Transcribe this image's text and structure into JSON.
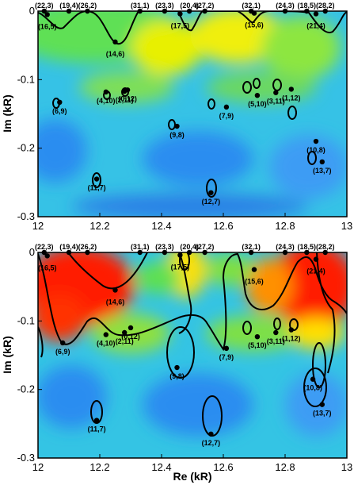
{
  "chart_data": [
    {
      "type": "heatmap",
      "title": "",
      "xlabel": "",
      "ylabel": "Im (kR)",
      "xlim": [
        12,
        13
      ],
      "ylim": [
        -0.3,
        0
      ],
      "xticks": [
        "12",
        "12.2",
        "12.4",
        "12.6",
        "12.8",
        "13"
      ],
      "yticks": [
        "0",
        "-0.1",
        "-0.2",
        "-0.3"
      ],
      "colorscale": [
        "#0b3bd6",
        "#2fa6f5",
        "#33d6c8",
        "#5de04a",
        "#ffef00",
        "#ff8c00",
        "#ff1a00"
      ],
      "top_labels": [
        {
          "label": "(22,3)",
          "x": 12.02
        },
        {
          "label": "(19,4)",
          "x": 12.1
        },
        {
          "label": "(26,2)",
          "x": 12.16
        },
        {
          "label": "(31,1)",
          "x": 12.33
        },
        {
          "label": "(23,3)",
          "x": 12.41
        },
        {
          "label": "(20,4)",
          "x": 12.49
        },
        {
          "label": "(27,2)",
          "x": 12.54
        },
        {
          "label": "(32,1)",
          "x": 12.69
        },
        {
          "label": "(24,3)",
          "x": 12.8
        },
        {
          "label": "(18,5)",
          "x": 12.87
        },
        {
          "label": "(28,2)",
          "x": 12.93
        }
      ],
      "poles": [
        {
          "label": "(16,5)",
          "re": 12.03,
          "im": -0.005
        },
        {
          "label": "(14,6)",
          "re": 12.25,
          "im": -0.045
        },
        {
          "label": "(17,5)",
          "re": 12.46,
          "im": -0.004
        },
        {
          "label": "(15,6)",
          "re": 12.7,
          "im": -0.003
        },
        {
          "label": "(21,4)",
          "re": 12.9,
          "im": -0.004
        },
        {
          "label": "(0,12)",
          "re": 12.29,
          "im": -0.115
        },
        {
          "label": "(4,10)",
          "re": 12.22,
          "im": -0.118
        },
        {
          "label": "(2,11)",
          "re": 12.28,
          "im": -0.117
        },
        {
          "label": "(6,9)",
          "re": 12.07,
          "im": -0.133
        },
        {
          "label": "(7,9)",
          "re": 12.61,
          "im": -0.14
        },
        {
          "label": "(5,10)",
          "re": 12.71,
          "im": -0.123
        },
        {
          "label": "(3,11)",
          "re": 12.77,
          "im": -0.119
        },
        {
          "label": "(1,12)",
          "re": 12.82,
          "im": -0.114
        },
        {
          "label": "(9,8)",
          "re": 12.45,
          "im": -0.168
        },
        {
          "label": "(10,8)",
          "re": 12.9,
          "im": -0.19
        },
        {
          "label": "(13,7)",
          "re": 12.92,
          "im": -0.22
        },
        {
          "label": "(11,7)",
          "re": 12.19,
          "im": -0.245
        },
        {
          "label": "(12,7)",
          "re": 12.56,
          "im": -0.265
        }
      ]
    },
    {
      "type": "heatmap",
      "title": "",
      "xlabel": "Re (kR)",
      "ylabel": "Im (kR)",
      "xlim": [
        12,
        13
      ],
      "ylim": [
        -0.3,
        0
      ],
      "xticks": [
        "12",
        "12.2",
        "12.4",
        "12.6",
        "12.8",
        "13"
      ],
      "yticks": [
        "0",
        "-0.1",
        "-0.2",
        "-0.3"
      ],
      "colorscale": [
        "#0b3bd6",
        "#2fa6f5",
        "#33d6c8",
        "#5de04a",
        "#ffef00",
        "#ff8c00",
        "#ff1a00"
      ],
      "top_labels": [
        {
          "label": "(22,3)",
          "x": 12.02
        },
        {
          "label": "(19,4)",
          "x": 12.1
        },
        {
          "label": "(26,2)",
          "x": 12.16
        },
        {
          "label": "(31,1)",
          "x": 12.33
        },
        {
          "label": "(23,3)",
          "x": 12.41
        },
        {
          "label": "(20,4)",
          "x": 12.49
        },
        {
          "label": "(27,2)",
          "x": 12.54
        },
        {
          "label": "(32,1)",
          "x": 12.69
        },
        {
          "label": "(24,3)",
          "x": 12.8
        },
        {
          "label": "(18,5)",
          "x": 12.87
        },
        {
          "label": "(28,2)",
          "x": 12.93
        }
      ],
      "poles": [
        {
          "label": "(16,5)",
          "re": 12.03,
          "im": -0.005
        },
        {
          "label": "(14,6)",
          "re": 12.25,
          "im": -0.055
        },
        {
          "label": "(17,5)",
          "re": 12.46,
          "im": -0.004
        },
        {
          "label": "(15,6)",
          "re": 12.7,
          "im": -0.025
        },
        {
          "label": "(21,4)",
          "re": 12.9,
          "im": -0.01
        },
        {
          "label": "(0,12)",
          "re": 12.3,
          "im": -0.11
        },
        {
          "label": "(4,10)",
          "re": 12.22,
          "im": -0.12
        },
        {
          "label": "(2,11)",
          "re": 12.28,
          "im": -0.117
        },
        {
          "label": "(6,9)",
          "re": 12.08,
          "im": -0.132
        },
        {
          "label": "(7,9)",
          "re": 12.61,
          "im": -0.14
        },
        {
          "label": "(5,10)",
          "re": 12.71,
          "im": -0.123
        },
        {
          "label": "(3,11)",
          "re": 12.77,
          "im": -0.117
        },
        {
          "label": "(1,12)",
          "re": 12.82,
          "im": -0.113
        },
        {
          "label": "(9,8)",
          "re": 12.45,
          "im": -0.168
        },
        {
          "label": "(10,8)",
          "re": 12.89,
          "im": -0.185
        },
        {
          "label": "(13,7)",
          "re": 12.92,
          "im": -0.222
        },
        {
          "label": "(11,7)",
          "re": 12.19,
          "im": -0.245
        },
        {
          "label": "(12,7)",
          "re": 12.56,
          "im": -0.265
        }
      ]
    }
  ]
}
